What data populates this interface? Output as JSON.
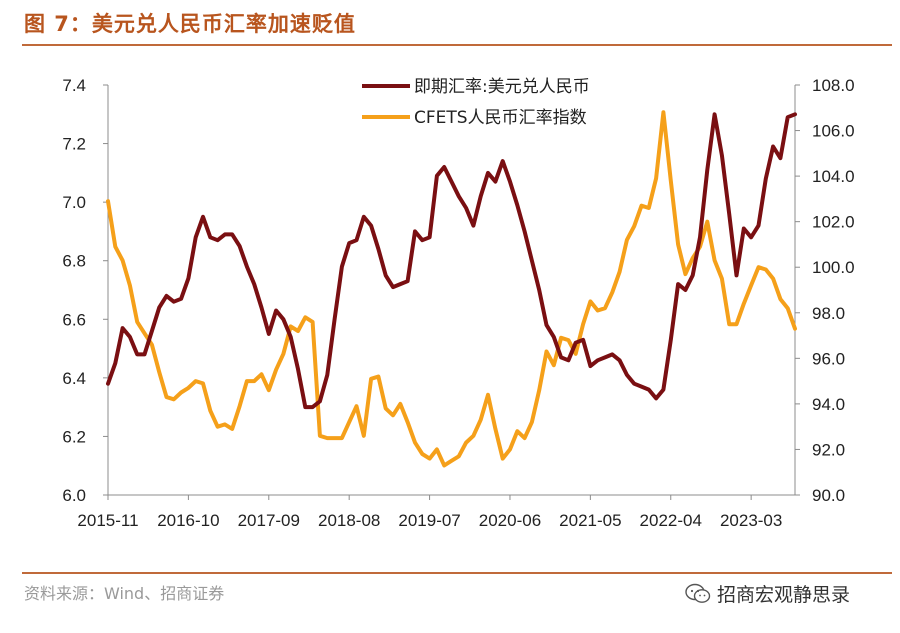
{
  "header": {
    "title": "图 7：美元兑人民币汇率加速贬值"
  },
  "footer": {
    "source": "资料来源：Wind、招商证券",
    "brand": "招商宏观静思录"
  },
  "colors": {
    "accent": "#c06a3a",
    "series1": "#7a0f12",
    "series2": "#f5a01a"
  },
  "chart_data": {
    "type": "line",
    "title": "",
    "x_tick_labels": [
      "2015-11",
      "2016-10",
      "2017-09",
      "2018-08",
      "2019-07",
      "2020-06",
      "2021-05",
      "2022-04",
      "2023-03"
    ],
    "x_range": [
      "2015-11",
      "2023-09"
    ],
    "y_left": {
      "ticks": [
        "6.0",
        "6.2",
        "6.4",
        "6.6",
        "6.8",
        "7.0",
        "7.2",
        "7.4"
      ],
      "range": [
        6.0,
        7.4
      ]
    },
    "y_right": {
      "ticks": [
        "90.0",
        "92.0",
        "94.0",
        "96.0",
        "98.0",
        "100.0",
        "102.0",
        "104.0",
        "106.0",
        "108.0"
      ],
      "range": [
        90.0,
        108.0
      ]
    },
    "grid": false,
    "legend_position": "top",
    "series": [
      {
        "name": "即期汇率:美元兑人民币",
        "axis": "left",
        "x": [
          "2015-11",
          "2015-12",
          "2016-01",
          "2016-02",
          "2016-03",
          "2016-04",
          "2016-05",
          "2016-06",
          "2016-07",
          "2016-08",
          "2016-09",
          "2016-10",
          "2016-11",
          "2016-12",
          "2017-01",
          "2017-02",
          "2017-03",
          "2017-04",
          "2017-05",
          "2017-06",
          "2017-07",
          "2017-08",
          "2017-09",
          "2017-10",
          "2017-11",
          "2017-12",
          "2018-01",
          "2018-02",
          "2018-03",
          "2018-04",
          "2018-05",
          "2018-06",
          "2018-07",
          "2018-08",
          "2018-09",
          "2018-10",
          "2018-11",
          "2018-12",
          "2019-01",
          "2019-02",
          "2019-03",
          "2019-04",
          "2019-05",
          "2019-06",
          "2019-07",
          "2019-08",
          "2019-09",
          "2019-10",
          "2019-11",
          "2019-12",
          "2020-01",
          "2020-02",
          "2020-03",
          "2020-04",
          "2020-05",
          "2020-06",
          "2020-07",
          "2020-08",
          "2020-09",
          "2020-10",
          "2020-11",
          "2020-12",
          "2021-01",
          "2021-02",
          "2021-03",
          "2021-04",
          "2021-05",
          "2021-06",
          "2021-07",
          "2021-08",
          "2021-09",
          "2021-10",
          "2021-11",
          "2021-12",
          "2022-01",
          "2022-02",
          "2022-03",
          "2022-04",
          "2022-05",
          "2022-06",
          "2022-07",
          "2022-08",
          "2022-09",
          "2022-10",
          "2022-11",
          "2022-12",
          "2023-01",
          "2023-02",
          "2023-03",
          "2023-04",
          "2023-05",
          "2023-06",
          "2023-07",
          "2023-08",
          "2023-09"
        ],
        "values": [
          6.38,
          6.45,
          6.57,
          6.54,
          6.48,
          6.48,
          6.56,
          6.64,
          6.68,
          6.66,
          6.67,
          6.74,
          6.88,
          6.95,
          6.88,
          6.87,
          6.89,
          6.89,
          6.85,
          6.78,
          6.72,
          6.64,
          6.55,
          6.63,
          6.6,
          6.54,
          6.43,
          6.3,
          6.3,
          6.32,
          6.41,
          6.6,
          6.78,
          6.86,
          6.87,
          6.95,
          6.92,
          6.84,
          6.75,
          6.71,
          6.72,
          6.73,
          6.9,
          6.87,
          6.88,
          7.09,
          7.12,
          7.07,
          7.02,
          6.98,
          6.92,
          7.02,
          7.1,
          7.07,
          7.14,
          7.07,
          6.99,
          6.9,
          6.8,
          6.7,
          6.58,
          6.54,
          6.47,
          6.46,
          6.52,
          6.53,
          6.44,
          6.46,
          6.47,
          6.48,
          6.46,
          6.41,
          6.38,
          6.37,
          6.36,
          6.33,
          6.36,
          6.53,
          6.72,
          6.7,
          6.75,
          6.88,
          7.11,
          7.3,
          7.16,
          6.96,
          6.75,
          6.91,
          6.88,
          6.92,
          7.08,
          7.19,
          7.15,
          7.29,
          7.3
        ]
      },
      {
        "name": "CFETS人民币汇率指数",
        "axis": "right",
        "x": [
          "2015-11",
          "2015-12",
          "2016-01",
          "2016-02",
          "2016-03",
          "2016-04",
          "2016-05",
          "2016-06",
          "2016-07",
          "2016-08",
          "2016-09",
          "2016-10",
          "2016-11",
          "2016-12",
          "2017-01",
          "2017-02",
          "2017-03",
          "2017-04",
          "2017-05",
          "2017-06",
          "2017-07",
          "2017-08",
          "2017-09",
          "2017-10",
          "2017-11",
          "2017-12",
          "2018-01",
          "2018-02",
          "2018-03",
          "2018-04",
          "2018-05",
          "2018-06",
          "2018-07",
          "2018-08",
          "2018-09",
          "2018-10",
          "2018-11",
          "2018-12",
          "2019-01",
          "2019-02",
          "2019-03",
          "2019-04",
          "2019-05",
          "2019-06",
          "2019-07",
          "2019-08",
          "2019-09",
          "2019-10",
          "2019-11",
          "2019-12",
          "2020-01",
          "2020-02",
          "2020-03",
          "2020-04",
          "2020-05",
          "2020-06",
          "2020-07",
          "2020-08",
          "2020-09",
          "2020-10",
          "2020-11",
          "2020-12",
          "2021-01",
          "2021-02",
          "2021-03",
          "2021-04",
          "2021-05",
          "2021-06",
          "2021-07",
          "2021-08",
          "2021-09",
          "2021-10",
          "2021-11",
          "2021-12",
          "2022-01",
          "2022-02",
          "2022-03",
          "2022-04",
          "2022-05",
          "2022-06",
          "2022-07",
          "2022-08",
          "2022-09",
          "2022-10",
          "2022-11",
          "2022-12",
          "2023-01",
          "2023-02",
          "2023-03",
          "2023-04",
          "2023-05",
          "2023-06",
          "2023-07",
          "2023-08",
          "2023-09"
        ],
        "values": [
          102.9,
          100.9,
          100.3,
          99.2,
          97.6,
          97.1,
          96.6,
          95.4,
          94.3,
          94.2,
          94.5,
          94.7,
          95.0,
          94.9,
          93.7,
          93.0,
          93.1,
          92.9,
          93.9,
          95.0,
          95.0,
          95.3,
          94.6,
          95.5,
          96.2,
          97.4,
          97.2,
          97.8,
          97.6,
          92.6,
          92.5,
          92.5,
          92.5,
          93.2,
          93.9,
          92.6,
          95.1,
          95.2,
          93.8,
          93.5,
          94.0,
          93.2,
          92.3,
          91.8,
          91.6,
          92.0,
          91.3,
          91.5,
          91.7,
          92.3,
          92.6,
          93.3,
          94.4,
          92.9,
          91.6,
          92.0,
          92.8,
          92.5,
          93.2,
          94.6,
          96.3,
          95.7,
          96.9,
          96.8,
          96.2,
          97.5,
          98.5,
          98.1,
          98.2,
          98.9,
          99.8,
          101.2,
          101.8,
          102.7,
          102.6,
          103.9,
          106.8,
          103.8,
          101.0,
          99.7,
          100.4,
          100.9,
          102.0,
          100.3,
          99.5,
          97.5,
          97.5,
          98.4,
          99.2,
          100.0,
          99.9,
          99.5,
          98.6,
          98.2,
          97.3
        ]
      }
    ]
  }
}
